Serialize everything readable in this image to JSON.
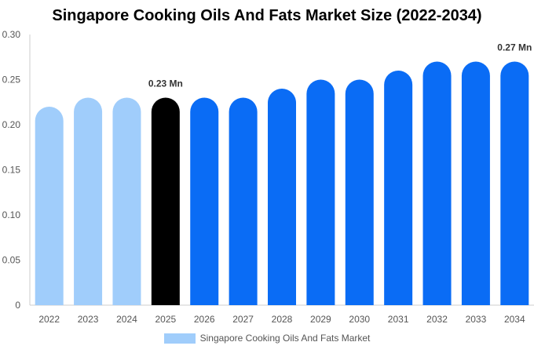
{
  "chart_data": {
    "type": "bar",
    "title": "Singapore Cooking Oils And Fats Market Size (2022-2034)",
    "categories": [
      "2022",
      "2023",
      "2024",
      "2025",
      "2026",
      "2027",
      "2028",
      "2029",
      "2030",
      "2031",
      "2032",
      "2033",
      "2034"
    ],
    "series": [
      {
        "name": "Singapore Cooking Oils And Fats Market",
        "values": [
          0.22,
          0.23,
          0.23,
          0.23,
          0.23,
          0.23,
          0.24,
          0.25,
          0.25,
          0.26,
          0.27,
          0.27,
          0.27
        ]
      }
    ],
    "ylim": [
      0,
      0.3
    ],
    "yticks": [
      "0",
      "0.05",
      "0.10",
      "0.15",
      "0.20",
      "0.25",
      "0.30"
    ],
    "grid": false,
    "legend_position": "bottom",
    "annotations": [
      {
        "category": "2025",
        "text": "0.23 Mn"
      },
      {
        "category": "2034",
        "text": "0.27 Mn"
      }
    ],
    "colors": {
      "historical": "#a0cdfb",
      "current": "#000000",
      "forecast": "#0a6cf5",
      "axis": "#cccccc"
    },
    "bar_color_group": [
      "historical",
      "historical",
      "historical",
      "current",
      "forecast",
      "forecast",
      "forecast",
      "forecast",
      "forecast",
      "forecast",
      "forecast",
      "forecast",
      "forecast"
    ]
  }
}
